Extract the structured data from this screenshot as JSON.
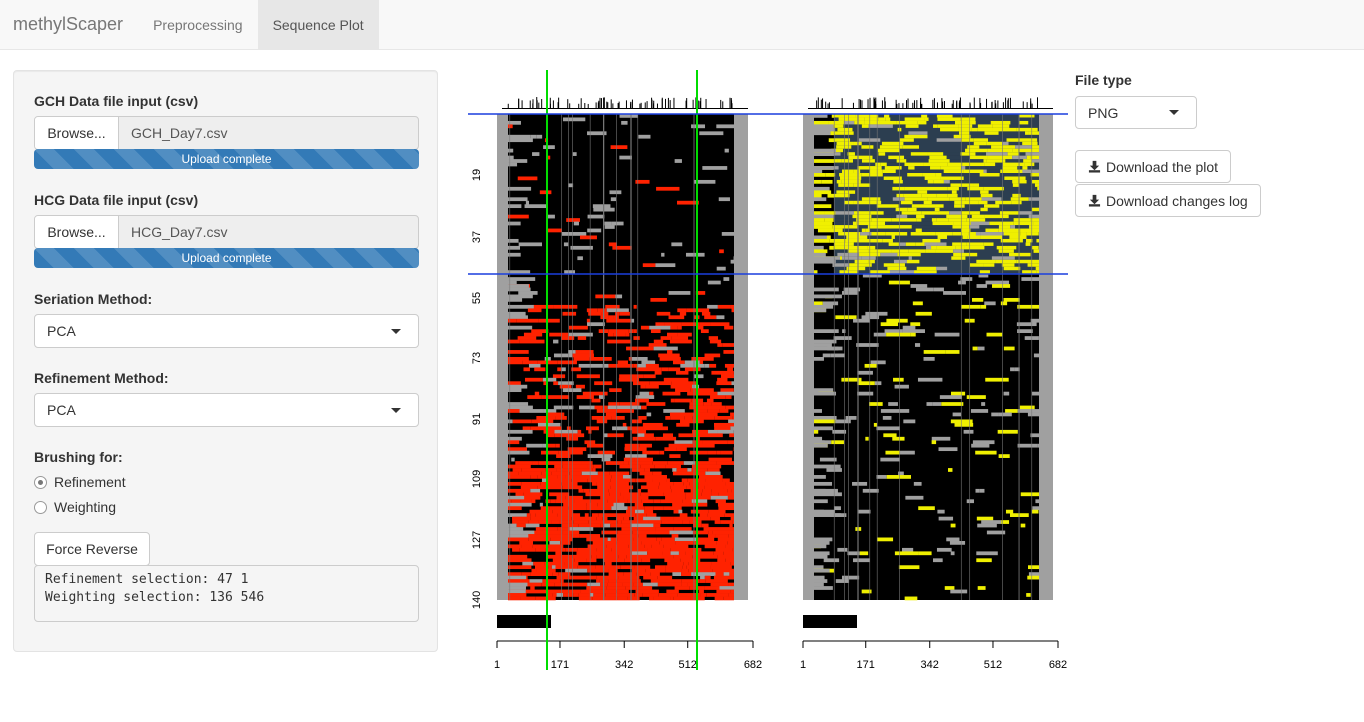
{
  "navbar": {
    "brand": "methylScaper",
    "tabs": [
      {
        "label": "Preprocessing",
        "active": false
      },
      {
        "label": "Sequence Plot",
        "active": true
      }
    ]
  },
  "sidebar": {
    "gch": {
      "label": "GCH Data file input (csv)",
      "browse": "Browse...",
      "file": "GCH_Day7.csv",
      "progress": "Upload complete"
    },
    "hcg": {
      "label": "HCG Data file input (csv)",
      "browse": "Browse...",
      "file": "HCG_Day7.csv",
      "progress": "Upload complete"
    },
    "seriation": {
      "label": "Seriation Method:",
      "value": "PCA"
    },
    "refinement": {
      "label": "Refinement Method:",
      "value": "PCA"
    },
    "brushing": {
      "label": "Brushing for:",
      "options": [
        {
          "label": "Refinement",
          "checked": true
        },
        {
          "label": "Weighting",
          "checked": false
        }
      ]
    },
    "force_reverse": "Force Reverse",
    "output": "Refinement selection: 47 1\nWeighting selection: 136 546"
  },
  "controls": {
    "file_type_label": "File type",
    "file_type_value": "PNG",
    "download_plot": "Download the plot",
    "download_log": "Download changes log"
  },
  "plot": {
    "row_ticks": [
      "19",
      "37",
      "55",
      "73",
      "91",
      "109",
      "127",
      "140"
    ],
    "x_ticks": [
      "1",
      "171",
      "342",
      "512",
      "682"
    ],
    "colors": {
      "gch_methylated": "#ff2200",
      "hcg_methylated": "#f0f000",
      "unmethylated": "#000000",
      "missing": "#a0a0a0",
      "highlight_gch": "#8a8a8a",
      "highlight_hcg": "#2c3e50",
      "green_brush": "#00dd00",
      "blue_brush": "#1a3fdd"
    }
  }
}
